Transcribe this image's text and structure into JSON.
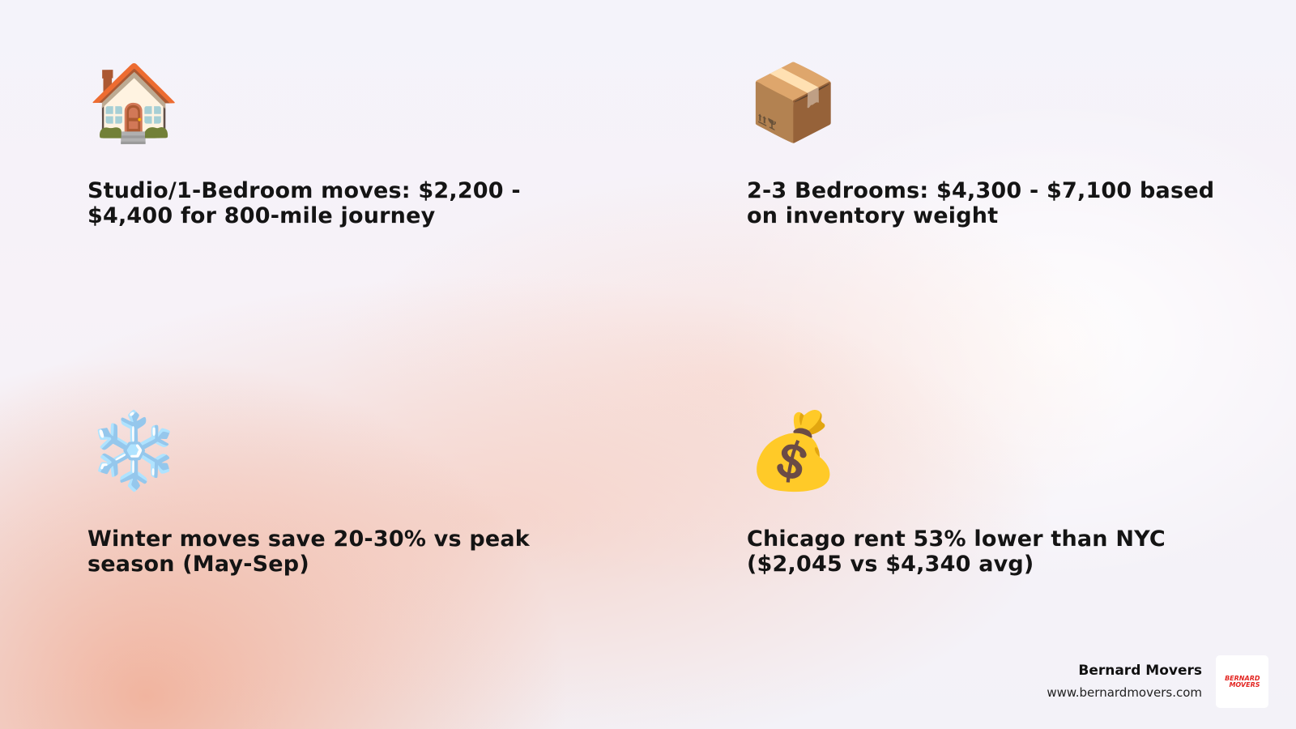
{
  "cards": [
    {
      "icon": "house-icon",
      "emoji": "🏠",
      "text": "Studio/1-Bedroom moves: $2,200 - $4,400 for 800-mile journey"
    },
    {
      "icon": "package-icon",
      "emoji": "📦",
      "text": "2-3 Bedrooms: $4,300 - $7,100 based on inventory weight"
    },
    {
      "icon": "snowflake-icon",
      "emoji": "❄️",
      "text": "Winter moves save 20-30% vs peak season (May-Sep)"
    },
    {
      "icon": "money-bag-icon",
      "emoji": "💰",
      "text": "Chicago rent 53% lower than NYC ($2,045 vs $4,340 avg)"
    }
  ],
  "footer": {
    "brand_name": "Bernard Movers",
    "url": "www.bernardmovers.com",
    "logo_text": "BERNARD MOVERS",
    "logo_color": "#e32420"
  }
}
